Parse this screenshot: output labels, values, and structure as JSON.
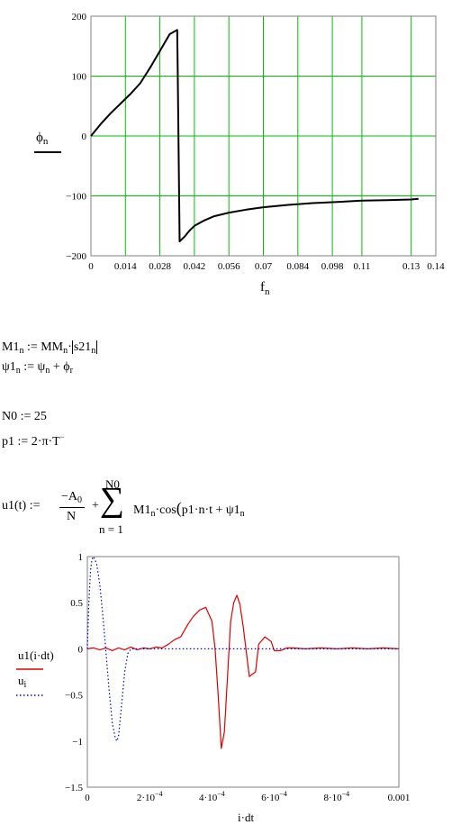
{
  "chart_data": [
    {
      "type": "line",
      "xlabel": "f",
      "xlabel_sub": "n",
      "ylabel": "ϕ",
      "ylabel_sub": "n",
      "xlim": [
        0,
        0.14
      ],
      "ylim": [
        -200,
        200
      ],
      "x_ticks": [
        0,
        0.014,
        0.028,
        0.042,
        0.056,
        0.07,
        0.084,
        0.098,
        0.11,
        0.13,
        0.14
      ],
      "x_tick_labels": [
        "0",
        "0.014",
        "0.028",
        "0.042",
        "0.056",
        "0.07",
        "0.084",
        "0.098",
        "0.11",
        "0.13",
        "0.14"
      ],
      "y_ticks": [
        200,
        100,
        0,
        -100,
        -200
      ],
      "y_tick_labels": [
        "200",
        "100",
        "0",
        "−100",
        "−200"
      ],
      "grid": true,
      "grid_color": "#00c000",
      "series": [
        {
          "color": "#000000",
          "x": [
            0,
            0.004,
            0.008,
            0.012,
            0.016,
            0.02,
            0.024,
            0.028,
            0.032,
            0.035,
            0.0352,
            0.036,
            0.038,
            0.04,
            0.042,
            0.046,
            0.05,
            0.056,
            0.063,
            0.07,
            0.08,
            0.09,
            0.1,
            0.11,
            0.12,
            0.13,
            0.133
          ],
          "y": [
            0,
            20,
            38,
            54,
            70,
            88,
            114,
            142,
            170,
            177,
            120,
            -176,
            -168,
            -158,
            -150,
            -141,
            -134,
            -128,
            -123,
            -119,
            -115,
            -112,
            -110,
            -108,
            -107,
            -106,
            -105
          ]
        }
      ]
    },
    {
      "type": "line",
      "xlabel": "i·dt",
      "xlim": [
        0,
        0.001
      ],
      "ylim": [
        -1.5,
        1
      ],
      "x_ticks": [
        0,
        0.0002,
        0.0004,
        0.0006,
        0.0008,
        0.001
      ],
      "x_tick_labels": [
        "0",
        "2·10",
        "4·10",
        "6·10",
        "8·10",
        "0.001"
      ],
      "x_tick_exponent": "−4",
      "y_ticks": [
        1,
        0.5,
        0,
        -0.5,
        -1,
        -1.5
      ],
      "y_tick_labels": [
        "1",
        "0.5",
        "0",
        "−0.5",
        "−1",
        "−1.5"
      ],
      "grid": false,
      "series": [
        {
          "name": "u1(i·dt)",
          "color": "#e00000",
          "style": "solid",
          "x": [
            0,
            2e-05,
            4e-05,
            6e-05,
            8e-05,
            0.0001,
            0.00012,
            0.00014,
            0.00016,
            0.00018,
            0.0002,
            0.00022,
            0.00024,
            0.00026,
            0.00028,
            0.0003,
            0.00032,
            0.00034,
            0.00036,
            0.00038,
            0.0004,
            0.00041,
            0.00042,
            0.00043,
            0.00044,
            0.00046,
            0.00047,
            0.00048,
            0.00049,
            0.0005,
            0.00052,
            0.00054,
            0.00055,
            0.00057,
            0.00059,
            0.0006,
            0.00062,
            0.00064,
            0.00066,
            0.0007,
            0.00075,
            0.0008,
            0.00085,
            0.0009,
            0.00095,
            0.001
          ],
          "y": [
            0,
            0.01,
            -0.01,
            0.01,
            -0.02,
            0.01,
            -0.01,
            0.02,
            -0.01,
            0.01,
            0,
            0.02,
            0.01,
            0.05,
            0.1,
            0.13,
            0.25,
            0.35,
            0.42,
            0.45,
            0.3,
            0,
            -0.5,
            -1.08,
            -0.9,
            0.3,
            0.5,
            0.58,
            0.48,
            0.25,
            -0.3,
            -0.25,
            0.05,
            0.13,
            0.08,
            -0.02,
            -0.02,
            0.01,
            0.01,
            0,
            0.01,
            0,
            0.01,
            0,
            0.01,
            0
          ]
        },
        {
          "name": "u",
          "name_sub": "i",
          "color": "#0000cc",
          "style": "dotted",
          "x": [
            0,
            5e-06,
            1e-05,
            1.5e-05,
            2e-05,
            3e-05,
            4e-05,
            5e-05,
            6e-05,
            7e-05,
            8e-05,
            9e-05,
            9.5e-05,
            0.0001,
            0.00011,
            0.00012,
            0.00013,
            0.00014,
            0.0002,
            0.0004,
            0.0006,
            0.0008,
            0.001
          ],
          "y": [
            0,
            0.5,
            0.85,
            0.97,
            1,
            0.92,
            0.7,
            0.35,
            -0.05,
            -0.45,
            -0.8,
            -0.97,
            -1,
            -0.95,
            -0.6,
            -0.25,
            -0.05,
            0,
            0,
            0,
            0,
            0,
            0
          ]
        }
      ]
    }
  ],
  "formulas": {
    "m1": "M1n := MMn·|s21n|",
    "psi1": "ψ1n := ψn + ϕr",
    "n0": "N0 := 25",
    "p1": "p1 := 2·π·T",
    "u1_lhs": "u1(t) := ",
    "u1_num": "−A0",
    "u1_den": "N",
    "u1_plus": "+",
    "sum_top": "N0",
    "sum_sym": "∑",
    "sum_bottom": "n = 1",
    "u1_term": "M1n·cos(p1·n·t + ψ1n"
  }
}
